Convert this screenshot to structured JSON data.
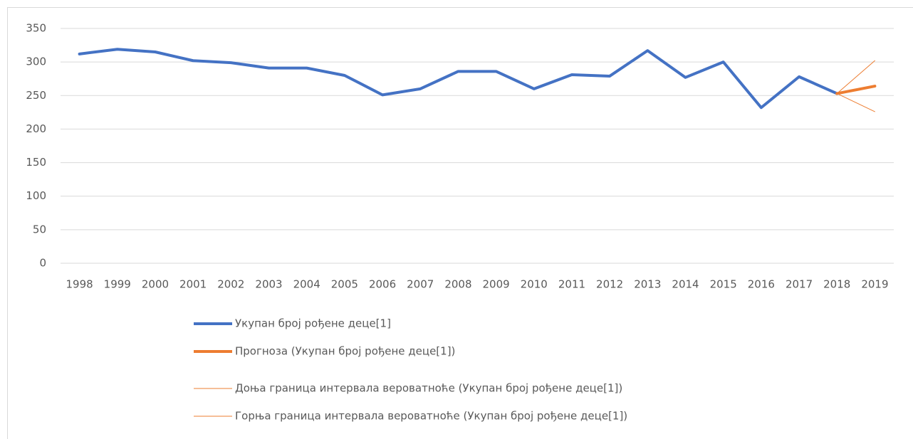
{
  "chart_data": {
    "type": "line",
    "categories": [
      "1998",
      "1999",
      "2000",
      "2001",
      "2002",
      "2003",
      "2004",
      "2005",
      "2006",
      "2007",
      "2008",
      "2009",
      "2010",
      "2011",
      "2012",
      "2013",
      "2014",
      "2015",
      "2016",
      "2017",
      "2018",
      "2019"
    ],
    "series": [
      {
        "name": "Укупан број рођене деце[1]",
        "color": "#4472c4",
        "line_width": 4,
        "values": [
          312,
          319,
          315,
          302,
          299,
          291,
          291,
          280,
          251,
          260,
          286,
          286,
          260,
          281,
          279,
          317,
          277,
          300,
          232,
          278,
          253,
          null
        ]
      },
      {
        "name": "Прогноза (Укупан број рођене деце[1])",
        "color": "#ed7d31",
        "line_width": 4,
        "values": [
          null,
          null,
          null,
          null,
          null,
          null,
          null,
          null,
          null,
          null,
          null,
          null,
          null,
          null,
          null,
          null,
          null,
          null,
          null,
          null,
          253,
          264
        ]
      },
      {
        "name": "Доња граница интервала вероватноће (Укупан број рођене деце[1])",
        "color": "#ed7d31",
        "line_width": 1,
        "values": [
          null,
          null,
          null,
          null,
          null,
          null,
          null,
          null,
          null,
          null,
          null,
          null,
          null,
          null,
          null,
          null,
          null,
          null,
          null,
          null,
          253,
          226
        ]
      },
      {
        "name": "Горња граница интервала вероватноће (Укупан број рођене деце[1])",
        "color": "#ed7d31",
        "line_width": 1,
        "values": [
          null,
          null,
          null,
          null,
          null,
          null,
          null,
          null,
          null,
          null,
          null,
          null,
          null,
          null,
          null,
          null,
          null,
          null,
          null,
          null,
          253,
          302
        ]
      }
    ],
    "ylim": [
      0,
      350
    ],
    "yticks": [
      0,
      50,
      100,
      150,
      200,
      250,
      300,
      350
    ],
    "grid": true,
    "legend": "bottom"
  }
}
